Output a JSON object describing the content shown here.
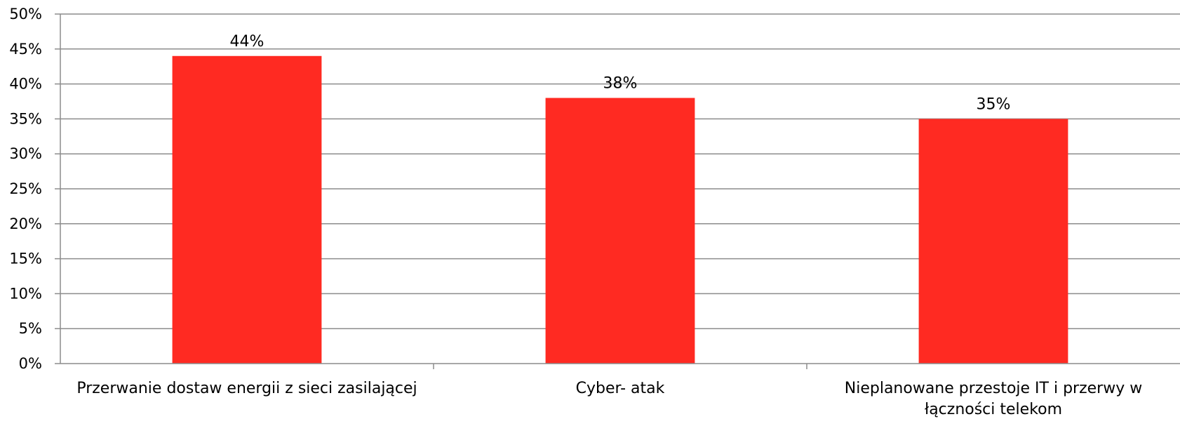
{
  "chart_data": {
    "type": "bar",
    "categories": [
      "Przerwanie dostaw energii z sieci zasilającej",
      "Cyber- atak",
      "Nieplanowane przestoje IT i przerwy w łączności telekom"
    ],
    "category_lines": [
      [
        "Przerwanie dostaw energii z sieci zasilającej"
      ],
      [
        "Cyber- atak"
      ],
      [
        "Nieplanowane przestoje IT i przerwy w",
        "łączności telekom"
      ]
    ],
    "values": [
      44,
      38,
      35
    ],
    "data_labels": [
      "44%",
      "38%",
      "35%"
    ],
    "ylim": [
      0,
      50
    ],
    "yticks": [
      0,
      5,
      10,
      15,
      20,
      25,
      30,
      35,
      40,
      45,
      50
    ],
    "ytick_labels": [
      "0%",
      "5%",
      "10%",
      "15%",
      "20%",
      "25%",
      "30%",
      "35%",
      "40%",
      "45%",
      "50%"
    ],
    "title": "",
    "xlabel": "",
    "ylabel": "",
    "grid": true,
    "legend": "none",
    "bar_color": "#ff2a22"
  }
}
